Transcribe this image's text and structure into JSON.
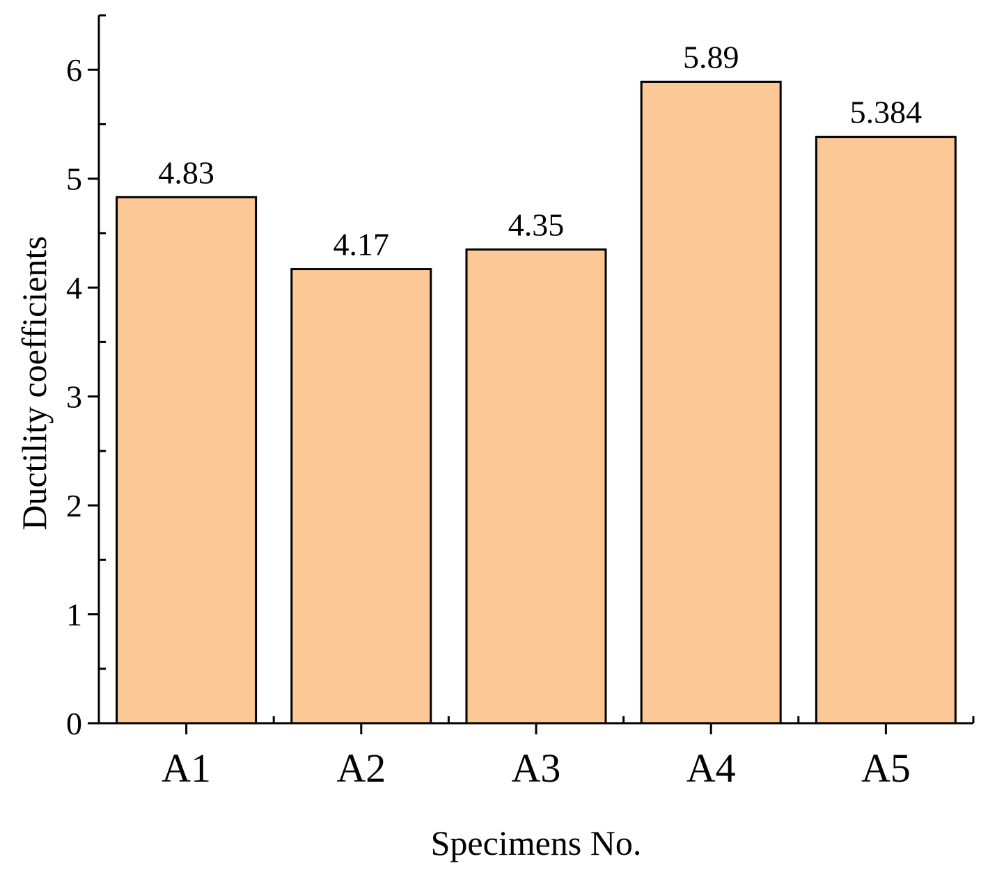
{
  "chart_data": {
    "type": "bar",
    "categories": [
      "A1",
      "A2",
      "A3",
      "A4",
      "A5"
    ],
    "values": [
      4.83,
      4.17,
      4.35,
      5.89,
      5.384
    ],
    "data_labels": [
      "4.83",
      "4.17",
      "4.35",
      "5.89",
      "5.384"
    ],
    "title": "",
    "xlabel": "Specimens No.",
    "ylabel": "Ductility coefficients",
    "ylim": [
      0,
      6.5
    ],
    "yticks": [
      0,
      1,
      2,
      3,
      4,
      5,
      6
    ],
    "yticks_minor": [
      0.5,
      1.5,
      2.5,
      3.5,
      4.5,
      5.5,
      6.5
    ],
    "grid": false,
    "legend": "none",
    "bar_color": "#fbc896",
    "edge_color": "#000000"
  }
}
